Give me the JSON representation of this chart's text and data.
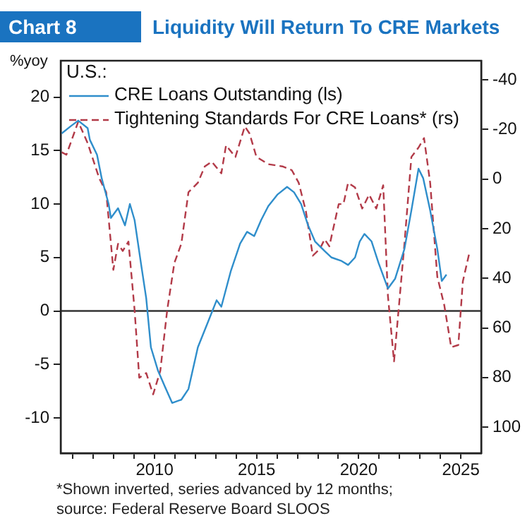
{
  "chart_data": {
    "type": "line",
    "subtitle": "Chart 8",
    "title": "Liquidity Will Return To CRE Markets",
    "ylabel": "%yoy",
    "legend_title": "U.S.:",
    "legend": "top left",
    "grid": false,
    "marker": "none",
    "xlim": [
      2005.4,
      2026.0
    ],
    "xticks": [
      {
        "value": 2006,
        "label": null
      },
      {
        "value": 2007,
        "label": null
      },
      {
        "value": 2008,
        "label": null
      },
      {
        "value": 2009,
        "label": null
      },
      2010,
      {
        "value": 2011,
        "label": null
      },
      {
        "value": 2012,
        "label": null
      },
      {
        "value": 2013,
        "label": null
      },
      {
        "value": 2014,
        "label": null
      },
      2015,
      {
        "value": 2016,
        "label": null
      },
      {
        "value": 2017,
        "label": null
      },
      {
        "value": 2018,
        "label": null
      },
      {
        "value": 2019,
        "label": null
      },
      2020,
      {
        "value": 2021,
        "label": null
      },
      {
        "value": 2022,
        "label": null
      },
      {
        "value": 2023,
        "label": null
      },
      {
        "value": 2024,
        "label": null
      },
      2025
    ],
    "ylim": [
      -13.3,
      23.4
    ],
    "yticks": [
      -10,
      -5,
      0,
      5,
      10,
      15,
      20
    ],
    "y2lim": [
      110.5,
      -47.7
    ],
    "y2ticks": [
      -40,
      -20,
      0,
      20,
      40,
      60,
      80,
      100
    ],
    "ref_lines": [
      {
        "axis": "y",
        "value": 0,
        "color": "#333333"
      }
    ],
    "annotations": [
      "*Shown inverted, series advanced by 12 months;",
      "source: Federal Reserve Board SLOOS"
    ],
    "series": [
      {
        "name": "CRE Loans Outstanding (ls)",
        "color": "#2f8ecb",
        "line_style": "solid",
        "x": [
          2005.45,
          2005.91,
          2006.26,
          2006.72,
          2006.83,
          2007.18,
          2007.41,
          2007.75,
          2007.86,
          2008.21,
          2008.55,
          2008.79,
          2009.02,
          2009.36,
          2009.59,
          2009.82,
          2010.17,
          2010.51,
          2010.86,
          2011.31,
          2011.66,
          2012.12,
          2012.58,
          2013.04,
          2013.27,
          2013.73,
          2014.19,
          2014.53,
          2014.88,
          2015.22,
          2015.57,
          2016.03,
          2016.49,
          2016.83,
          2017.18,
          2017.52,
          2017.86,
          2018.33,
          2018.67,
          2019.13,
          2019.48,
          2019.82,
          2020.05,
          2020.28,
          2020.63,
          2020.97,
          2021.43,
          2021.78,
          2022.24,
          2022.58,
          2022.93,
          2023.16,
          2023.5,
          2023.85,
          2024.07,
          2024.3
        ],
        "values": [
          16.6,
          17.3,
          17.8,
          17.1,
          16.0,
          14.6,
          12.4,
          10.0,
          8.7,
          9.6,
          8.0,
          10.0,
          8.5,
          4.1,
          1.2,
          -3.4,
          -5.6,
          -7.1,
          -8.6,
          -8.3,
          -7.3,
          -3.4,
          -1.2,
          1.0,
          0.4,
          3.7,
          6.3,
          7.4,
          7.0,
          8.5,
          9.8,
          10.9,
          11.6,
          11.1,
          10.0,
          8.0,
          6.5,
          5.6,
          5.0,
          4.7,
          4.3,
          5.0,
          6.5,
          7.2,
          6.5,
          4.5,
          2.1,
          3.0,
          5.8,
          9.4,
          13.3,
          12.4,
          9.4,
          5.8,
          2.8,
          3.4
        ]
      },
      {
        "name": "Tightening Standards For CRE Loans* (rs)",
        "color": "#b23a48",
        "line_style": "dashed",
        "axis": "y2",
        "x": [
          2005.45,
          2005.68,
          2006.26,
          2006.72,
          2007.29,
          2007.63,
          2007.98,
          2008.21,
          2008.44,
          2008.72,
          2009.02,
          2009.25,
          2009.59,
          2009.93,
          2010.28,
          2010.62,
          2010.97,
          2011.31,
          2011.66,
          2012.12,
          2012.46,
          2012.8,
          2013.27,
          2013.5,
          2013.96,
          2014.42,
          2014.65,
          2014.99,
          2015.57,
          2015.8,
          2016.26,
          2016.72,
          2017.06,
          2017.41,
          2017.75,
          2018.1,
          2018.33,
          2018.56,
          2019.02,
          2019.25,
          2019.48,
          2019.82,
          2020.17,
          2020.51,
          2020.86,
          2021.2,
          2021.43,
          2021.73,
          2022.24,
          2022.58,
          2022.93,
          2023.2,
          2023.5,
          2023.85,
          2024.19,
          2024.53,
          2024.88,
          2025.1,
          2025.44
        ],
        "values": [
          -10.8,
          -9.8,
          -23.1,
          -14.5,
          -0.3,
          5.3,
          36.6,
          26.1,
          29.0,
          25.2,
          52.7,
          80.1,
          78.2,
          86.8,
          77.3,
          52.7,
          33.8,
          26.1,
          5.3,
          1.5,
          -5.1,
          -7.0,
          -2.3,
          -13.6,
          -8.9,
          -21.2,
          -18.4,
          -8.9,
          -6.0,
          -5.7,
          -5.1,
          -3.6,
          1.5,
          12.9,
          30.9,
          28.1,
          24.3,
          27.1,
          10.1,
          10.1,
          1.5,
          3.4,
          11.9,
          6.3,
          11.9,
          2.5,
          47.0,
          73.5,
          26.1,
          -8.9,
          -12.7,
          -16.5,
          1.5,
          39.4,
          50.8,
          67.8,
          66.9,
          41.3,
          29.0
        ]
      }
    ]
  }
}
